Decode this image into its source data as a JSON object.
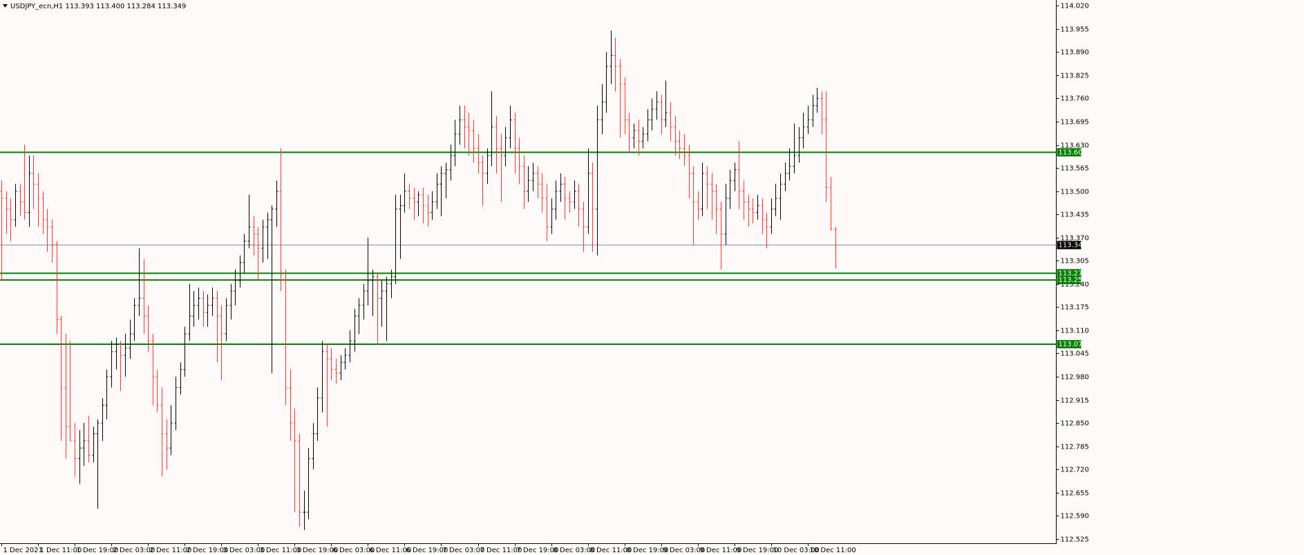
{
  "chart_data": {
    "type": "ohlc",
    "title": "USDJPY_ecn,H1  113.393 113.400 113.284 113.349",
    "up_color": "#000000",
    "down_color": "#ff3030",
    "ylim": [
      112.513,
      114.036
    ],
    "yticks": [
      {
        "value": 114.02,
        "label": "114.020"
      },
      113.955,
      {
        "value": 113.89,
        "label": "113.890"
      },
      113.825,
      {
        "value": 113.76,
        "label": "113.760"
      },
      113.695,
      {
        "value": 113.63,
        "label": "113.630"
      },
      113.565,
      {
        "value": 113.5,
        "label": "113.500"
      },
      113.435,
      {
        "value": 113.37,
        "label": "113.370"
      },
      113.305,
      {
        "value": 113.24,
        "label": "113.240"
      },
      113.175,
      {
        "value": 113.11,
        "label": "113.110"
      },
      113.045,
      {
        "value": 112.98,
        "label": "112.980"
      },
      112.915,
      {
        "value": 112.85,
        "label": "112.850"
      },
      112.785,
      {
        "value": 112.72,
        "label": "112.720"
      },
      112.655,
      {
        "value": 112.59,
        "label": "112.590"
      },
      112.525
    ],
    "levels": [
      {
        "value": 113.609,
        "color": "#008000"
      },
      {
        "value": 113.27,
        "label": "113.270",
        "color": "#008000"
      },
      {
        "value": 113.251,
        "color": "#008000"
      },
      {
        "value": 113.071,
        "color": "#008000"
      },
      {
        "value": 113.349,
        "color": "#000000",
        "line_color": "#8c8ca8"
      }
    ],
    "categories": [
      "1 Dec 2021",
      null,
      null,
      null,
      null,
      null,
      null,
      null,
      "1 Dec 11:00",
      null,
      null,
      null,
      null,
      null,
      null,
      null,
      "1 Dec 19:00",
      null,
      null,
      null,
      null,
      null,
      null,
      null,
      "2 Dec 03:00",
      null,
      null,
      null,
      null,
      null,
      null,
      null,
      "2 Dec 11:00",
      null,
      null,
      null,
      null,
      null,
      null,
      null,
      "2 Dec 19:00",
      null,
      null,
      null,
      null,
      null,
      null,
      null,
      "3 Dec 03:00",
      null,
      null,
      null,
      null,
      null,
      null,
      null,
      "3 Dec 11:00",
      null,
      null,
      null,
      null,
      null,
      null,
      null,
      "3 Dec 19:00",
      null,
      null,
      null,
      null,
      null,
      null,
      null,
      "6 Dec 03:00",
      null,
      null,
      null,
      null,
      null,
      null,
      null,
      "6 Dec 11:00",
      null,
      null,
      null,
      null,
      null,
      null,
      null,
      "6 Dec 19:00",
      null,
      null,
      null,
      null,
      null,
      null,
      null,
      "7 Dec 03:00",
      null,
      null,
      null,
      null,
      null,
      null,
      null,
      "7 Dec 11:00",
      null,
      null,
      null,
      null,
      null,
      null,
      null,
      "7 Dec 19:00",
      null,
      null,
      null,
      null,
      null,
      null,
      null,
      "8 Dec 03:00",
      null,
      null,
      null,
      null,
      null,
      null,
      null,
      "8 Dec 11:00",
      null,
      null,
      null,
      null,
      null,
      null,
      null,
      "8 Dec 19:00",
      null,
      null,
      null,
      null,
      null,
      null,
      null,
      "9 Dec 03:00",
      null,
      null,
      null,
      null,
      null,
      null,
      null,
      "9 Dec 11:00",
      null,
      null,
      null,
      null,
      null,
      null,
      null,
      "9 Dec 19:00",
      null,
      null,
      null,
      null,
      null,
      null,
      null,
      "10 Dec 03:00",
      null,
      null,
      null,
      null,
      null,
      null,
      null,
      "10 Dec 11:00",
      null,
      null,
      null,
      null,
      null,
      null
    ],
    "ohlc": [
      [
        113.5,
        113.53,
        113.25,
        113.48
      ],
      [
        113.48,
        113.5,
        113.38,
        113.45
      ],
      [
        113.45,
        113.48,
        113.36,
        113.42
      ],
      [
        113.42,
        113.52,
        113.4,
        113.5
      ],
      [
        113.5,
        113.52,
        113.43,
        113.47
      ],
      [
        113.47,
        113.63,
        113.42,
        113.44
      ],
      [
        113.44,
        113.6,
        113.4,
        113.55
      ],
      [
        113.55,
        113.6,
        113.45,
        113.52
      ],
      [
        113.52,
        113.55,
        113.4,
        113.48
      ],
      [
        113.48,
        113.5,
        113.38,
        113.42
      ],
      [
        113.42,
        113.45,
        113.33,
        113.4
      ],
      [
        113.4,
        113.42,
        113.3,
        113.35
      ],
      [
        113.35,
        113.36,
        113.1,
        113.14
      ],
      [
        113.14,
        113.15,
        112.8,
        112.95
      ],
      [
        112.95,
        113.1,
        112.75,
        112.84
      ],
      [
        112.84,
        113.08,
        112.8,
        112.8
      ],
      [
        112.8,
        112.85,
        112.7,
        112.75
      ],
      [
        112.75,
        112.83,
        112.68,
        112.78
      ],
      [
        112.78,
        112.85,
        112.73,
        112.8
      ],
      [
        112.8,
        112.87,
        112.74,
        112.76
      ],
      [
        112.76,
        112.84,
        112.74,
        112.82
      ],
      [
        112.82,
        112.86,
        112.61,
        112.85
      ],
      [
        112.85,
        112.92,
        112.8,
        112.9
      ],
      [
        112.9,
        113.0,
        112.86,
        112.98
      ],
      [
        112.98,
        113.08,
        112.95,
        113.05
      ],
      [
        113.05,
        113.09,
        113.0,
        113.07
      ],
      [
        113.07,
        113.08,
        112.94,
        113.04
      ],
      [
        113.04,
        113.1,
        112.98,
        113.06
      ],
      [
        113.06,
        113.14,
        113.03,
        113.1
      ],
      [
        113.1,
        113.2,
        113.08,
        113.18
      ],
      [
        113.18,
        113.34,
        113.15,
        113.2
      ],
      [
        113.2,
        113.31,
        113.1,
        113.15
      ],
      [
        113.15,
        113.18,
        113.05,
        113.08
      ],
      [
        113.08,
        113.1,
        112.9,
        112.98
      ],
      [
        112.98,
        113.0,
        112.88,
        112.9
      ],
      [
        112.9,
        112.95,
        112.7,
        112.82
      ],
      [
        112.82,
        112.86,
        112.72,
        112.78
      ],
      [
        112.78,
        112.9,
        112.76,
        112.85
      ],
      [
        112.85,
        112.98,
        112.83,
        112.95
      ],
      [
        112.95,
        113.02,
        112.93,
        113.0
      ],
      [
        113.0,
        113.12,
        112.98,
        113.1
      ],
      [
        113.1,
        113.24,
        113.08,
        113.15
      ],
      [
        113.15,
        113.22,
        113.12,
        113.18
      ],
      [
        113.18,
        113.23,
        113.14,
        113.2
      ],
      [
        113.2,
        113.22,
        113.12,
        113.16
      ],
      [
        113.16,
        113.21,
        113.12,
        113.18
      ],
      [
        113.18,
        113.23,
        113.15,
        113.2
      ],
      [
        113.2,
        113.22,
        113.02,
        113.15
      ],
      [
        113.15,
        113.18,
        112.97,
        113.1
      ],
      [
        113.1,
        113.2,
        113.08,
        113.18
      ],
      [
        113.18,
        113.24,
        113.14,
        113.22
      ],
      [
        113.22,
        113.28,
        113.18,
        113.25
      ],
      [
        113.25,
        113.32,
        113.23,
        113.3
      ],
      [
        113.3,
        113.38,
        113.27,
        113.36
      ],
      [
        113.36,
        113.49,
        113.34,
        113.4
      ],
      [
        113.4,
        113.43,
        113.32,
        113.38
      ],
      [
        113.38,
        113.4,
        113.25,
        113.34
      ],
      [
        113.34,
        113.42,
        113.3,
        113.4
      ],
      [
        113.4,
        113.44,
        113.31,
        113.42
      ],
      [
        113.42,
        113.46,
        112.99,
        113.45
      ],
      [
        113.45,
        113.53,
        113.4,
        113.5
      ],
      [
        113.5,
        113.62,
        113.22,
        113.25
      ],
      [
        113.25,
        113.28,
        112.9,
        112.95
      ],
      [
        112.95,
        113.0,
        112.8,
        112.85
      ],
      [
        112.85,
        112.89,
        112.6,
        112.8
      ],
      [
        112.8,
        112.82,
        112.56,
        112.6
      ],
      [
        112.6,
        112.66,
        112.55,
        112.6
      ],
      [
        112.6,
        112.78,
        112.58,
        112.75
      ],
      [
        112.75,
        112.85,
        112.72,
        112.82
      ],
      [
        112.82,
        112.95,
        112.8,
        112.92
      ],
      [
        112.92,
        113.08,
        112.88,
        113.05
      ],
      [
        113.05,
        113.07,
        112.84,
        113.03
      ],
      [
        113.03,
        113.06,
        112.97,
        113.0
      ],
      [
        113.0,
        113.03,
        112.96,
        112.99
      ],
      [
        112.99,
        113.04,
        112.97,
        113.02
      ],
      [
        113.02,
        113.06,
        113.0,
        113.04
      ],
      [
        113.04,
        113.11,
        113.02,
        113.08
      ],
      [
        113.08,
        113.17,
        113.05,
        113.15
      ],
      [
        113.15,
        113.2,
        113.1,
        113.18
      ],
      [
        113.18,
        113.24,
        113.14,
        113.22
      ],
      [
        113.22,
        113.37,
        113.18,
        113.25
      ],
      [
        113.25,
        113.28,
        113.15,
        113.26
      ],
      [
        113.26,
        113.27,
        113.07,
        113.2
      ],
      [
        113.2,
        113.25,
        113.12,
        113.22
      ],
      [
        113.22,
        113.26,
        113.08,
        113.24
      ],
      [
        113.24,
        113.28,
        113.2,
        113.26
      ],
      [
        113.26,
        113.49,
        113.24,
        113.45
      ],
      [
        113.45,
        113.49,
        113.31,
        113.46
      ],
      [
        113.46,
        113.55,
        113.44,
        113.5
      ],
      [
        113.5,
        113.52,
        113.45,
        113.48
      ],
      [
        113.48,
        113.51,
        113.42,
        113.47
      ],
      [
        113.47,
        113.5,
        113.43,
        113.49
      ],
      [
        113.49,
        113.51,
        113.41,
        113.46
      ],
      [
        113.46,
        113.49,
        113.4,
        113.44
      ],
      [
        113.44,
        113.5,
        113.42,
        113.47
      ],
      [
        113.47,
        113.55,
        113.45,
        113.52
      ],
      [
        113.52,
        113.57,
        113.43,
        113.55
      ],
      [
        113.55,
        113.58,
        113.48,
        113.56
      ],
      [
        113.56,
        113.63,
        113.53,
        113.6
      ],
      [
        113.6,
        113.7,
        113.57,
        113.66
      ],
      [
        113.66,
        113.74,
        113.63,
        113.7
      ],
      [
        113.7,
        113.74,
        113.62,
        113.68
      ],
      [
        113.68,
        113.72,
        113.6,
        113.67
      ],
      [
        113.67,
        113.7,
        113.58,
        113.62
      ],
      [
        113.62,
        113.66,
        113.55,
        113.58
      ],
      [
        113.58,
        113.6,
        113.46,
        113.55
      ],
      [
        113.55,
        113.62,
        113.52,
        113.6
      ],
      [
        113.6,
        113.78,
        113.57,
        113.68
      ],
      [
        113.68,
        113.71,
        113.55,
        113.62
      ],
      [
        113.62,
        113.66,
        113.47,
        113.6
      ],
      [
        113.6,
        113.68,
        113.57,
        113.65
      ],
      [
        113.65,
        113.74,
        113.62,
        113.7
      ],
      [
        113.7,
        113.72,
        113.55,
        113.62
      ],
      [
        113.62,
        113.65,
        113.52,
        113.57
      ],
      [
        113.57,
        113.6,
        113.45,
        113.5
      ],
      [
        113.5,
        113.57,
        113.47,
        113.53
      ],
      [
        113.53,
        113.58,
        113.5,
        113.55
      ],
      [
        113.55,
        113.57,
        113.48,
        113.52
      ],
      [
        113.52,
        113.55,
        113.44,
        113.48
      ],
      [
        113.48,
        113.52,
        113.36,
        113.4
      ],
      [
        113.4,
        113.48,
        113.38,
        113.45
      ],
      [
        113.45,
        113.53,
        113.42,
        113.5
      ],
      [
        113.5,
        113.55,
        113.47,
        113.52
      ],
      [
        113.52,
        113.54,
        113.42,
        113.48
      ],
      [
        113.48,
        113.5,
        113.44,
        113.47
      ],
      [
        113.47,
        113.53,
        113.45,
        113.5
      ],
      [
        113.5,
        113.52,
        113.4,
        113.45
      ],
      [
        113.45,
        113.47,
        113.33,
        113.4
      ],
      [
        113.4,
        113.62,
        113.38,
        113.55
      ],
      [
        113.55,
        113.58,
        113.33,
        113.45
      ],
      [
        113.45,
        113.74,
        113.32,
        113.7
      ],
      [
        113.7,
        113.8,
        113.66,
        113.75
      ],
      [
        113.75,
        113.89,
        113.72,
        113.85
      ],
      [
        113.85,
        113.95,
        113.8,
        113.88
      ],
      [
        113.88,
        113.93,
        113.78,
        113.85
      ],
      [
        113.85,
        113.87,
        113.65,
        113.8
      ],
      [
        113.8,
        113.82,
        113.66,
        113.7
      ],
      [
        113.7,
        113.72,
        113.61,
        113.65
      ],
      [
        113.65,
        113.69,
        113.62,
        113.67
      ],
      [
        113.67,
        113.7,
        113.6,
        113.64
      ],
      [
        113.64,
        113.68,
        113.62,
        113.66
      ],
      [
        113.66,
        113.73,
        113.64,
        113.7
      ],
      [
        113.7,
        113.76,
        113.67,
        113.73
      ],
      [
        113.73,
        113.78,
        113.7,
        113.75
      ],
      [
        113.75,
        113.77,
        113.66,
        113.7
      ],
      [
        113.7,
        113.81,
        113.68,
        113.72
      ],
      [
        113.72,
        113.75,
        113.64,
        113.68
      ],
      [
        113.68,
        113.71,
        113.6,
        113.64
      ],
      [
        113.64,
        113.67,
        113.59,
        113.62
      ],
      [
        113.62,
        113.66,
        113.57,
        113.6
      ],
      [
        113.6,
        113.63,
        113.48,
        113.55
      ],
      [
        113.55,
        113.57,
        113.35,
        113.47
      ],
      [
        113.47,
        113.5,
        113.42,
        113.45
      ],
      [
        113.45,
        113.58,
        113.43,
        113.55
      ],
      [
        113.55,
        113.57,
        113.45,
        113.52
      ],
      [
        113.52,
        113.55,
        113.42,
        113.5
      ],
      [
        113.5,
        113.52,
        113.38,
        113.45
      ],
      [
        113.45,
        113.47,
        113.28,
        113.38
      ],
      [
        113.38,
        113.52,
        113.35,
        113.48
      ],
      [
        113.48,
        113.56,
        113.45,
        113.53
      ],
      [
        113.53,
        113.58,
        113.5,
        113.56
      ],
      [
        113.56,
        113.64,
        113.45,
        113.5
      ],
      [
        113.5,
        113.53,
        113.42,
        113.47
      ],
      [
        113.47,
        113.49,
        113.4,
        113.45
      ],
      [
        113.45,
        113.48,
        113.41,
        113.44
      ],
      [
        113.44,
        113.49,
        113.42,
        113.46
      ],
      [
        113.46,
        113.48,
        113.38,
        113.42
      ],
      [
        113.42,
        113.44,
        113.34,
        113.4
      ],
      [
        113.4,
        113.48,
        113.38,
        113.45
      ],
      [
        113.45,
        113.52,
        113.43,
        113.48
      ],
      [
        113.48,
        113.55,
        113.42,
        113.52
      ],
      [
        113.52,
        113.58,
        113.5,
        113.55
      ],
      [
        113.55,
        113.62,
        113.53,
        113.57
      ],
      [
        113.57,
        113.69,
        113.55,
        113.6
      ],
      [
        113.6,
        113.68,
        113.58,
        113.65
      ],
      [
        113.65,
        113.72,
        113.62,
        113.68
      ],
      [
        113.68,
        113.74,
        113.66,
        113.7
      ],
      [
        113.7,
        113.77,
        113.68,
        113.74
      ],
      [
        113.74,
        113.79,
        113.72,
        113.76
      ],
      [
        113.76,
        113.78,
        113.66,
        113.7
      ],
      [
        113.7,
        113.78,
        113.47,
        113.51
      ],
      [
        113.51,
        113.54,
        113.39,
        113.393
      ],
      [
        113.393,
        113.4,
        113.284,
        113.349
      ]
    ]
  }
}
